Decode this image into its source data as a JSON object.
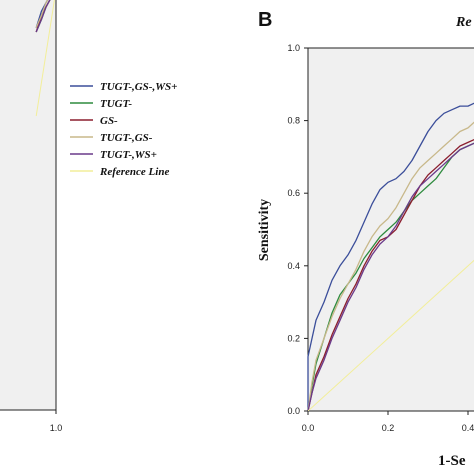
{
  "panel_b": {
    "letter": "B",
    "title_fragment": "Re"
  },
  "chart_data": [
    {
      "type": "line",
      "panel": "A",
      "xlabel": "",
      "ylabel": "",
      "xlim": [
        0,
        1.0
      ],
      "ylim": [
        0,
        1.0
      ],
      "x_tick_labels": [
        "1.0"
      ],
      "y_tick_labels": [],
      "grid": false,
      "legend_position": "right",
      "series": [
        {
          "name": "TUGT-,GS-,WS+",
          "color": "#3b4e9a",
          "points": [
            [
              0.7,
              0.91
            ],
            [
              0.78,
              0.95
            ],
            [
              0.85,
              0.97
            ],
            [
              0.92,
              0.99
            ],
            [
              1.0,
              1.0
            ]
          ]
        },
        {
          "name": "TUGT-",
          "color": "#2e8b3e",
          "points": [
            [
              0.7,
              0.9
            ],
            [
              0.78,
              0.93
            ],
            [
              0.85,
              0.96
            ],
            [
              0.92,
              0.98
            ],
            [
              1.0,
              1.0
            ]
          ]
        },
        {
          "name": "GS-",
          "color": "#8b1e2e",
          "points": [
            [
              0.7,
              0.9
            ],
            [
              0.78,
              0.94
            ],
            [
              0.85,
              0.96
            ],
            [
              0.92,
              0.98
            ],
            [
              1.0,
              1.0
            ]
          ]
        },
        {
          "name": "TUGT-,GS-",
          "color": "#c8b88a",
          "points": [
            [
              0.7,
              0.91
            ],
            [
              0.78,
              0.94
            ],
            [
              0.85,
              0.97
            ],
            [
              0.92,
              0.99
            ],
            [
              1.0,
              1.0
            ]
          ]
        },
        {
          "name": "TUGT-,WS+",
          "color": "#6a3a8a",
          "points": [
            [
              0.7,
              0.9
            ],
            [
              0.78,
              0.93
            ],
            [
              0.85,
              0.96
            ],
            [
              0.92,
              0.98
            ],
            [
              1.0,
              1.0
            ]
          ]
        },
        {
          "name": "Reference Line",
          "color": "#f2ee9a",
          "points": [
            [
              0.7,
              0.7
            ],
            [
              1.0,
              1.0
            ]
          ]
        }
      ]
    },
    {
      "type": "line",
      "panel": "B",
      "xlabel": "1-Se",
      "ylabel": "Sensitivity",
      "xlim": [
        0,
        0.45
      ],
      "ylim": [
        0,
        1.0
      ],
      "x_ticks": [
        0.0,
        0.2,
        0.4
      ],
      "x_tick_labels": [
        "0.0",
        "0.2",
        "0.4"
      ],
      "y_ticks": [
        0.0,
        0.2,
        0.4,
        0.6,
        0.8,
        1.0
      ],
      "y_tick_labels": [
        "0.0",
        "0.2",
        "0.4",
        "0.6",
        "0.8",
        "1.0"
      ],
      "grid": false,
      "series": [
        {
          "name": "TUGT-,GS-,WS+",
          "color": "#3b4e9a",
          "points": [
            [
              0,
              0
            ],
            [
              0.0,
              0.15
            ],
            [
              0.01,
              0.2
            ],
            [
              0.02,
              0.25
            ],
            [
              0.04,
              0.3
            ],
            [
              0.06,
              0.36
            ],
            [
              0.08,
              0.4
            ],
            [
              0.1,
              0.43
            ],
            [
              0.12,
              0.47
            ],
            [
              0.14,
              0.52
            ],
            [
              0.16,
              0.57
            ],
            [
              0.18,
              0.61
            ],
            [
              0.2,
              0.63
            ],
            [
              0.22,
              0.64
            ],
            [
              0.24,
              0.66
            ],
            [
              0.26,
              0.69
            ],
            [
              0.28,
              0.73
            ],
            [
              0.3,
              0.77
            ],
            [
              0.32,
              0.8
            ],
            [
              0.34,
              0.82
            ],
            [
              0.36,
              0.83
            ],
            [
              0.38,
              0.84
            ],
            [
              0.4,
              0.84
            ],
            [
              0.42,
              0.85
            ],
            [
              0.45,
              0.85
            ]
          ]
        },
        {
          "name": "TUGT-",
          "color": "#2e8b3e",
          "points": [
            [
              0,
              0
            ],
            [
              0.01,
              0.07
            ],
            [
              0.02,
              0.13
            ],
            [
              0.04,
              0.2
            ],
            [
              0.06,
              0.27
            ],
            [
              0.08,
              0.32
            ],
            [
              0.1,
              0.35
            ],
            [
              0.12,
              0.38
            ],
            [
              0.14,
              0.42
            ],
            [
              0.16,
              0.45
            ],
            [
              0.18,
              0.48
            ],
            [
              0.2,
              0.5
            ],
            [
              0.22,
              0.52
            ],
            [
              0.24,
              0.55
            ],
            [
              0.26,
              0.58
            ],
            [
              0.28,
              0.6
            ],
            [
              0.3,
              0.62
            ],
            [
              0.32,
              0.64
            ],
            [
              0.34,
              0.67
            ],
            [
              0.36,
              0.7
            ],
            [
              0.38,
              0.72
            ],
            [
              0.4,
              0.73
            ],
            [
              0.42,
              0.74
            ],
            [
              0.45,
              0.75
            ]
          ]
        },
        {
          "name": "GS-",
          "color": "#8b1e2e",
          "points": [
            [
              0,
              0
            ],
            [
              0.01,
              0.05
            ],
            [
              0.02,
              0.1
            ],
            [
              0.04,
              0.15
            ],
            [
              0.06,
              0.21
            ],
            [
              0.08,
              0.26
            ],
            [
              0.1,
              0.31
            ],
            [
              0.12,
              0.35
            ],
            [
              0.14,
              0.4
            ],
            [
              0.16,
              0.44
            ],
            [
              0.18,
              0.47
            ],
            [
              0.2,
              0.48
            ],
            [
              0.22,
              0.5
            ],
            [
              0.24,
              0.54
            ],
            [
              0.26,
              0.58
            ],
            [
              0.28,
              0.62
            ],
            [
              0.3,
              0.65
            ],
            [
              0.32,
              0.67
            ],
            [
              0.34,
              0.69
            ],
            [
              0.36,
              0.71
            ],
            [
              0.38,
              0.73
            ],
            [
              0.4,
              0.74
            ],
            [
              0.42,
              0.75
            ],
            [
              0.45,
              0.76
            ]
          ]
        },
        {
          "name": "TUGT-,GS-",
          "color": "#c8b88a",
          "points": [
            [
              0,
              0
            ],
            [
              0.01,
              0.08
            ],
            [
              0.02,
              0.14
            ],
            [
              0.04,
              0.2
            ],
            [
              0.06,
              0.26
            ],
            [
              0.08,
              0.31
            ],
            [
              0.1,
              0.35
            ],
            [
              0.12,
              0.39
            ],
            [
              0.14,
              0.44
            ],
            [
              0.16,
              0.48
            ],
            [
              0.18,
              0.51
            ],
            [
              0.2,
              0.53
            ],
            [
              0.22,
              0.56
            ],
            [
              0.24,
              0.6
            ],
            [
              0.26,
              0.64
            ],
            [
              0.28,
              0.67
            ],
            [
              0.3,
              0.69
            ],
            [
              0.32,
              0.71
            ],
            [
              0.34,
              0.73
            ],
            [
              0.36,
              0.75
            ],
            [
              0.38,
              0.77
            ],
            [
              0.4,
              0.78
            ],
            [
              0.42,
              0.8
            ],
            [
              0.45,
              0.81
            ]
          ]
        },
        {
          "name": "TUGT-,WS+",
          "color": "#6a3a8a",
          "points": [
            [
              0,
              0
            ],
            [
              0.01,
              0.05
            ],
            [
              0.02,
              0.09
            ],
            [
              0.04,
              0.14
            ],
            [
              0.06,
              0.2
            ],
            [
              0.08,
              0.25
            ],
            [
              0.1,
              0.3
            ],
            [
              0.12,
              0.34
            ],
            [
              0.14,
              0.39
            ],
            [
              0.16,
              0.43
            ],
            [
              0.18,
              0.46
            ],
            [
              0.2,
              0.48
            ],
            [
              0.22,
              0.51
            ],
            [
              0.24,
              0.55
            ],
            [
              0.26,
              0.59
            ],
            [
              0.28,
              0.62
            ],
            [
              0.3,
              0.64
            ],
            [
              0.32,
              0.66
            ],
            [
              0.34,
              0.68
            ],
            [
              0.36,
              0.7
            ],
            [
              0.38,
              0.72
            ],
            [
              0.4,
              0.73
            ],
            [
              0.42,
              0.74
            ],
            [
              0.45,
              0.75
            ]
          ]
        },
        {
          "name": "Reference Line",
          "color": "#f2ee9a",
          "points": [
            [
              0,
              0
            ],
            [
              0.45,
              0.45
            ]
          ]
        }
      ]
    }
  ]
}
